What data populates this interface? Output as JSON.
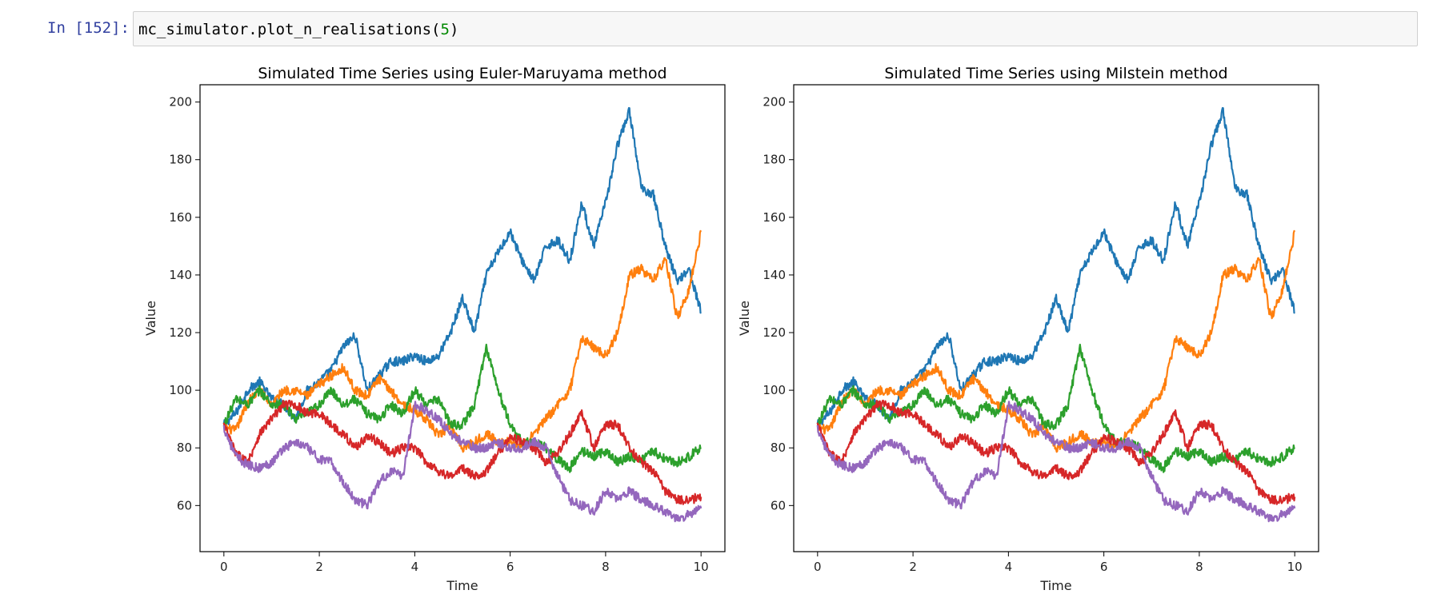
{
  "cell": {
    "prompt": "In [152]:",
    "code_call": "mc_simulator.plot_n_realisations",
    "code_open": "(",
    "code_arg": "5",
    "code_close": ")"
  },
  "colors": {
    "prompt": "#303f9f",
    "number_literal": "#008800",
    "series": [
      "#1f77b4",
      "#ff7f0e",
      "#2ca02c",
      "#d62728",
      "#9467bd"
    ]
  },
  "chart_data": [
    {
      "type": "line",
      "title": "Simulated Time Series using Euler-Maruyama method",
      "xlabel": "Time",
      "ylabel": "Value",
      "xlim": [
        -0.5,
        10.5
      ],
      "ylim": [
        44,
        206
      ],
      "xticks": [
        0,
        2,
        4,
        6,
        8,
        10
      ],
      "yticks": [
        60,
        80,
        100,
        120,
        140,
        160,
        180,
        200
      ],
      "grid": false,
      "series": [
        {
          "color": "#1f77b4",
          "x": [
            0,
            0.25,
            0.5,
            0.75,
            1,
            1.25,
            1.5,
            1.75,
            2,
            2.25,
            2.5,
            2.75,
            3,
            3.25,
            3.5,
            3.75,
            4,
            4.25,
            4.5,
            4.75,
            5,
            5.25,
            5.5,
            5.75,
            6,
            6.25,
            6.5,
            6.75,
            7,
            7.25,
            7.5,
            7.75,
            8,
            8.25,
            8.5,
            8.75,
            9,
            9.25,
            9.5,
            9.75,
            10
          ],
          "y": [
            88,
            92,
            100,
            103,
            97,
            95,
            90,
            100,
            103,
            107,
            115,
            119,
            100,
            105,
            110,
            110,
            112,
            110,
            112,
            120,
            132,
            120,
            140,
            148,
            155,
            145,
            138,
            150,
            152,
            145,
            165,
            150,
            165,
            185,
            197,
            170,
            168,
            150,
            138,
            142,
            127
          ]
        },
        {
          "color": "#ff7f0e",
          "x": [
            0,
            0.25,
            0.5,
            0.75,
            1,
            1.25,
            1.5,
            1.75,
            2,
            2.25,
            2.5,
            2.75,
            3,
            3.25,
            3.5,
            3.75,
            4,
            4.25,
            4.5,
            4.75,
            5,
            5.25,
            5.5,
            5.75,
            6,
            6.25,
            6.5,
            6.75,
            7,
            7.25,
            7.5,
            7.75,
            8,
            8.25,
            8.5,
            8.75,
            9,
            9.25,
            9.5,
            9.75,
            10
          ],
          "y": [
            87,
            86,
            96,
            100,
            95,
            100,
            100,
            98,
            102,
            105,
            108,
            100,
            98,
            104,
            100,
            95,
            93,
            90,
            84,
            88,
            80,
            82,
            85,
            82,
            82,
            80,
            85,
            90,
            95,
            100,
            118,
            115,
            112,
            120,
            140,
            142,
            138,
            146,
            125,
            135,
            155
          ]
        },
        {
          "color": "#2ca02c",
          "x": [
            0,
            0.25,
            0.5,
            0.75,
            1,
            1.25,
            1.5,
            1.75,
            2,
            2.25,
            2.5,
            2.75,
            3,
            3.25,
            3.5,
            3.75,
            4,
            4.25,
            4.5,
            4.75,
            5,
            5.25,
            5.5,
            5.75,
            6,
            6.25,
            6.5,
            6.75,
            7,
            7.25,
            7.5,
            7.75,
            8,
            8.25,
            8.5,
            8.75,
            9,
            9.25,
            9.5,
            9.75,
            10
          ],
          "y": [
            88,
            97,
            95,
            100,
            95,
            95,
            90,
            92,
            95,
            100,
            95,
            97,
            92,
            90,
            95,
            92,
            100,
            95,
            97,
            88,
            88,
            95,
            115,
            100,
            88,
            82,
            82,
            80,
            76,
            73,
            79,
            77,
            79,
            75,
            77,
            76,
            79,
            76,
            75,
            77,
            80
          ]
        },
        {
          "color": "#d62728",
          "x": [
            0,
            0.25,
            0.5,
            0.75,
            1,
            1.25,
            1.5,
            1.75,
            2,
            2.25,
            2.5,
            2.75,
            3,
            3.25,
            3.5,
            3.75,
            4,
            4.25,
            4.5,
            4.75,
            5,
            5.25,
            5.5,
            5.75,
            6,
            6.25,
            6.5,
            6.75,
            7,
            7.25,
            7.5,
            7.75,
            8,
            8.25,
            8.5,
            8.75,
            9,
            9.25,
            9.5,
            9.75,
            10
          ],
          "y": [
            88,
            78,
            75,
            85,
            90,
            95,
            95,
            92,
            92,
            88,
            85,
            80,
            84,
            82,
            78,
            80,
            80,
            75,
            72,
            70,
            73,
            70,
            72,
            78,
            84,
            82,
            80,
            75,
            78,
            85,
            92,
            80,
            88,
            88,
            80,
            75,
            72,
            65,
            62,
            62,
            63
          ]
        },
        {
          "color": "#9467bd",
          "x": [
            0,
            0.25,
            0.5,
            0.75,
            1,
            1.25,
            1.5,
            1.75,
            2,
            2.25,
            2.5,
            2.75,
            3,
            3.25,
            3.5,
            3.75,
            4,
            4.25,
            4.5,
            4.75,
            5,
            5.25,
            5.5,
            5.75,
            6,
            6.25,
            6.5,
            6.75,
            7,
            7.25,
            7.5,
            7.75,
            8,
            8.25,
            8.5,
            8.75,
            9,
            9.25,
            9.5,
            9.75,
            10
          ],
          "y": [
            87,
            77,
            74,
            73,
            75,
            80,
            82,
            80,
            76,
            75,
            68,
            62,
            60,
            68,
            72,
            70,
            95,
            93,
            90,
            85,
            82,
            80,
            80,
            82,
            80,
            80,
            82,
            80,
            70,
            62,
            60,
            58,
            65,
            62,
            65,
            62,
            60,
            58,
            55,
            57,
            59
          ]
        }
      ]
    },
    {
      "type": "line",
      "title": "Simulated Time Series using Milstein method",
      "xlabel": "Time",
      "ylabel": "Value",
      "xlim": [
        -0.5,
        10.5
      ],
      "ylim": [
        44,
        206
      ],
      "xticks": [
        0,
        2,
        4,
        6,
        8,
        10
      ],
      "yticks": [
        60,
        80,
        100,
        120,
        140,
        160,
        180,
        200
      ],
      "grid": false,
      "series": [
        {
          "color": "#1f77b4",
          "x": [
            0,
            0.25,
            0.5,
            0.75,
            1,
            1.25,
            1.5,
            1.75,
            2,
            2.25,
            2.5,
            2.75,
            3,
            3.25,
            3.5,
            3.75,
            4,
            4.25,
            4.5,
            4.75,
            5,
            5.25,
            5.5,
            5.75,
            6,
            6.25,
            6.5,
            6.75,
            7,
            7.25,
            7.5,
            7.75,
            8,
            8.25,
            8.5,
            8.75,
            9,
            9.25,
            9.5,
            9.75,
            10
          ],
          "y": [
            88,
            92,
            100,
            103,
            97,
            95,
            90,
            100,
            103,
            107,
            115,
            119,
            100,
            105,
            110,
            110,
            112,
            110,
            112,
            120,
            132,
            120,
            140,
            148,
            155,
            145,
            138,
            150,
            152,
            145,
            165,
            150,
            165,
            185,
            197,
            170,
            168,
            150,
            138,
            142,
            127
          ]
        },
        {
          "color": "#ff7f0e",
          "x": [
            0,
            0.25,
            0.5,
            0.75,
            1,
            1.25,
            1.5,
            1.75,
            2,
            2.25,
            2.5,
            2.75,
            3,
            3.25,
            3.5,
            3.75,
            4,
            4.25,
            4.5,
            4.75,
            5,
            5.25,
            5.5,
            5.75,
            6,
            6.25,
            6.5,
            6.75,
            7,
            7.25,
            7.5,
            7.75,
            8,
            8.25,
            8.5,
            8.75,
            9,
            9.25,
            9.5,
            9.75,
            10
          ],
          "y": [
            87,
            86,
            96,
            100,
            95,
            100,
            100,
            98,
            102,
            105,
            108,
            100,
            98,
            104,
            100,
            95,
            93,
            90,
            84,
            88,
            80,
            82,
            85,
            82,
            82,
            80,
            85,
            90,
            95,
            100,
            118,
            115,
            112,
            120,
            140,
            142,
            138,
            146,
            125,
            135,
            155
          ]
        },
        {
          "color": "#2ca02c",
          "x": [
            0,
            0.25,
            0.5,
            0.75,
            1,
            1.25,
            1.5,
            1.75,
            2,
            2.25,
            2.5,
            2.75,
            3,
            3.25,
            3.5,
            3.75,
            4,
            4.25,
            4.5,
            4.75,
            5,
            5.25,
            5.5,
            5.75,
            6,
            6.25,
            6.5,
            6.75,
            7,
            7.25,
            7.5,
            7.75,
            8,
            8.25,
            8.5,
            8.75,
            9,
            9.25,
            9.5,
            9.75,
            10
          ],
          "y": [
            88,
            97,
            95,
            100,
            95,
            95,
            90,
            92,
            95,
            100,
            95,
            97,
            92,
            90,
            95,
            92,
            100,
            95,
            97,
            88,
            88,
            95,
            115,
            100,
            88,
            82,
            82,
            80,
            76,
            73,
            79,
            77,
            79,
            75,
            77,
            76,
            79,
            76,
            75,
            77,
            80
          ]
        },
        {
          "color": "#d62728",
          "x": [
            0,
            0.25,
            0.5,
            0.75,
            1,
            1.25,
            1.5,
            1.75,
            2,
            2.25,
            2.5,
            2.75,
            3,
            3.25,
            3.5,
            3.75,
            4,
            4.25,
            4.5,
            4.75,
            5,
            5.25,
            5.5,
            5.75,
            6,
            6.25,
            6.5,
            6.75,
            7,
            7.25,
            7.5,
            7.75,
            8,
            8.25,
            8.5,
            8.75,
            9,
            9.25,
            9.5,
            9.75,
            10
          ],
          "y": [
            88,
            78,
            75,
            85,
            90,
            95,
            95,
            92,
            92,
            88,
            85,
            80,
            84,
            82,
            78,
            80,
            80,
            75,
            72,
            70,
            73,
            70,
            72,
            78,
            84,
            82,
            80,
            75,
            78,
            85,
            92,
            80,
            88,
            88,
            80,
            75,
            72,
            65,
            62,
            62,
            63
          ]
        },
        {
          "color": "#9467bd",
          "x": [
            0,
            0.25,
            0.5,
            0.75,
            1,
            1.25,
            1.5,
            1.75,
            2,
            2.25,
            2.5,
            2.75,
            3,
            3.25,
            3.5,
            3.75,
            4,
            4.25,
            4.5,
            4.75,
            5,
            5.25,
            5.5,
            5.75,
            6,
            6.25,
            6.5,
            6.75,
            7,
            7.25,
            7.5,
            7.75,
            8,
            8.25,
            8.5,
            8.75,
            9,
            9.25,
            9.5,
            9.75,
            10
          ],
          "y": [
            87,
            77,
            74,
            73,
            75,
            80,
            82,
            80,
            76,
            75,
            68,
            62,
            60,
            68,
            72,
            70,
            95,
            93,
            90,
            85,
            82,
            80,
            80,
            82,
            80,
            80,
            82,
            80,
            70,
            62,
            60,
            58,
            65,
            62,
            65,
            62,
            60,
            58,
            55,
            57,
            59
          ]
        }
      ]
    }
  ]
}
